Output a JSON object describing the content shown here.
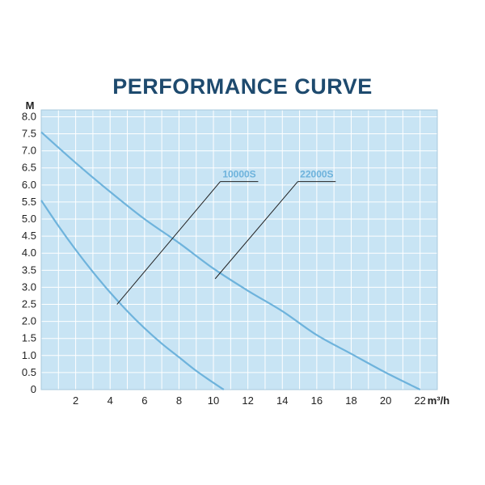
{
  "chart_data": {
    "type": "line",
    "title": "PERFORMANCE CURVE",
    "ylabel": "M",
    "xlabel": "m³/h",
    "xlim": [
      0,
      23
    ],
    "ylim": [
      0,
      8.2
    ],
    "x_ticks": [
      2,
      4,
      6,
      8,
      10,
      12,
      14,
      16,
      18,
      20,
      22
    ],
    "x_tick_labels": [
      "2",
      "4",
      "6",
      "8",
      "10",
      "12",
      "14",
      "16",
      "18",
      "20",
      "22"
    ],
    "y_ticks": [
      0,
      0.5,
      1.0,
      1.5,
      2.0,
      2.5,
      3.0,
      3.5,
      4.0,
      4.5,
      5.0,
      5.5,
      6.0,
      6.5,
      7.0,
      7.5,
      8.0
    ],
    "y_tick_labels": [
      "0",
      "0.5",
      "1.0",
      "1.5",
      "2.0",
      "2.5",
      "3.0",
      "3.5",
      "4.0",
      "4.5",
      "5.0",
      "5.5",
      "6.0",
      "6.5",
      "7.0",
      "7.5",
      "8.0"
    ],
    "grid": true,
    "series": [
      {
        "name": "10000S",
        "x": [
          0,
          1,
          2,
          3,
          4,
          5,
          6,
          7,
          8,
          9,
          10,
          10.6
        ],
        "y": [
          5.55,
          4.8,
          4.1,
          3.45,
          2.85,
          2.3,
          1.8,
          1.35,
          0.95,
          0.55,
          0.2,
          0
        ]
      },
      {
        "name": "22000S",
        "x": [
          0,
          2,
          4,
          6,
          8,
          10,
          12,
          14,
          16,
          18,
          20,
          22
        ],
        "y": [
          7.55,
          6.65,
          5.8,
          5.0,
          4.3,
          3.55,
          2.9,
          2.3,
          1.6,
          1.05,
          0.5,
          0
        ]
      }
    ],
    "annotations": [
      {
        "text": "10000S",
        "series": "10000S",
        "point": [
          4.4,
          2.5
        ],
        "label_at": [
          10.4,
          6.1
        ],
        "label_end": [
          12.6,
          6.1
        ]
      },
      {
        "text": "22000S",
        "series": "22000S",
        "point": [
          10.1,
          3.25
        ],
        "label_at": [
          14.9,
          6.1
        ],
        "label_end": [
          17.1,
          6.1
        ]
      }
    ],
    "colors": {
      "plot_background": "#c8e4f4",
      "grid": "#ffffff",
      "curve": "#6eb3dc",
      "leader_line": "#222222",
      "callout_text": "#6eb3dc",
      "title": "#1e4a6e"
    }
  }
}
